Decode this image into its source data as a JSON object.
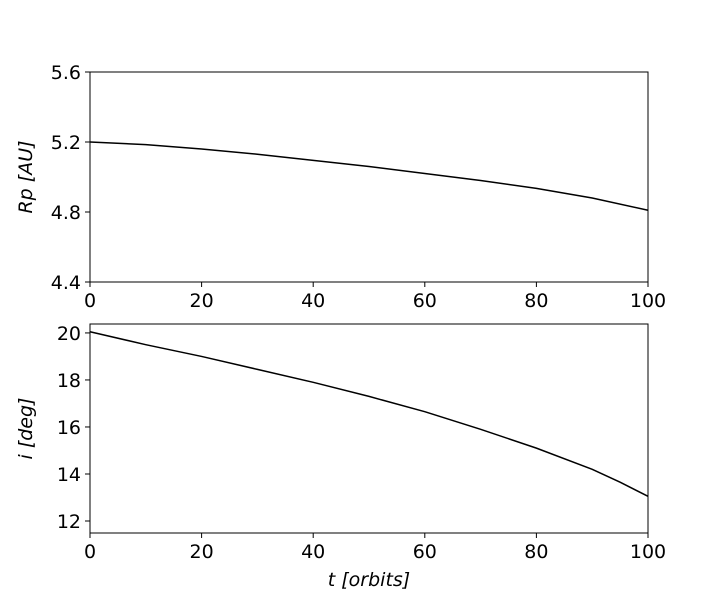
{
  "chart_data": [
    {
      "type": "line",
      "ylabel": "Rp [AU]",
      "x": [
        0,
        10,
        20,
        30,
        40,
        50,
        60,
        70,
        80,
        90,
        100
      ],
      "series": [
        {
          "color": "#000000",
          "values": [
            5.2,
            5.185,
            5.16,
            5.13,
            5.095,
            5.06,
            5.02,
            4.98,
            4.935,
            4.88,
            4.81
          ]
        }
      ],
      "xlim": [
        0,
        100
      ],
      "xticks": [
        0,
        20,
        40,
        60,
        80,
        100
      ],
      "ylim": [
        4.4,
        5.6
      ],
      "yticks": [
        4.4,
        4.8,
        5.2,
        5.6
      ]
    },
    {
      "type": "line",
      "xlabel": "t [orbits]",
      "ylabel": "i [deg]",
      "x": [
        0,
        10,
        20,
        30,
        40,
        50,
        60,
        70,
        80,
        90,
        95,
        100
      ],
      "series": [
        {
          "color": "#000000",
          "values": [
            20.05,
            19.5,
            19.0,
            18.45,
            17.9,
            17.3,
            16.65,
            15.9,
            15.1,
            14.2,
            13.65,
            13.05
          ]
        }
      ],
      "xlim": [
        0,
        100
      ],
      "xticks": [
        0,
        20,
        40,
        60,
        80,
        100
      ],
      "ylim": [
        11.49,
        20.38
      ],
      "yticks": [
        12,
        14,
        16,
        18,
        20
      ]
    }
  ]
}
